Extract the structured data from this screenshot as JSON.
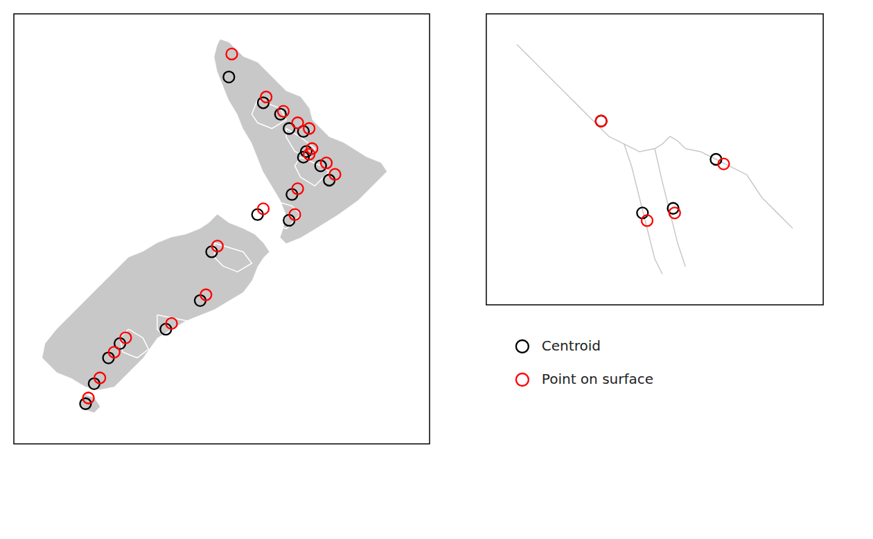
{
  "chart_data": [
    {
      "type": "scatter",
      "xlim": [
        165.5,
        180.0
      ],
      "ylim": [
        -48.5,
        -33.5
      ],
      "tick_labels": false,
      "series": [
        {
          "type": "polygon",
          "color": "#c8c8c8",
          "x": [
            172.7,
            173.0,
            173.5,
            174.0,
            174.3,
            174.8,
            175.0,
            175.5,
            175.8,
            175.9,
            176.2,
            176.5,
            177.0,
            177.8,
            178.3,
            178.5,
            178.0,
            177.5,
            176.8,
            176.0,
            175.5,
            175.0,
            174.8,
            174.9,
            175.0,
            174.8,
            174.5,
            174.2,
            174.0,
            173.8,
            173.5,
            173.3,
            173.0,
            172.8,
            172.6,
            172.5,
            172.6,
            172.7
          ],
          "values": [
            -34.4,
            -34.5,
            -35.0,
            -35.2,
            -35.5,
            -36.0,
            -36.2,
            -36.4,
            -36.8,
            -37.2,
            -37.5,
            -37.8,
            -38.0,
            -38.5,
            -38.7,
            -39.0,
            -39.5,
            -40.0,
            -40.5,
            -41.0,
            -41.3,
            -41.5,
            -41.3,
            -41.0,
            -40.5,
            -40.0,
            -39.5,
            -39.0,
            -38.5,
            -38.0,
            -37.5,
            -37.0,
            -36.5,
            -36.0,
            -35.5,
            -35.0,
            -34.6,
            -34.4
          ]
        },
        {
          "type": "polygon",
          "color": "#c8c8c8",
          "x": [
            172.6,
            173.0,
            173.5,
            173.9,
            174.2,
            174.4,
            174.2,
            174.0,
            173.8,
            173.5,
            173.0,
            172.5,
            172.0,
            171.5,
            171.0,
            170.5,
            170.0,
            169.5,
            169.0,
            168.5,
            168.0,
            167.5,
            167.0,
            166.8,
            166.5,
            166.6,
            167.0,
            167.5,
            168.0,
            168.5,
            169.0,
            169.5,
            170.0,
            170.5,
            171.0,
            171.5,
            172.0,
            172.3,
            172.6
          ],
          "values": [
            -40.5,
            -40.8,
            -41.0,
            -41.2,
            -41.5,
            -41.8,
            -42.0,
            -42.3,
            -42.8,
            -43.2,
            -43.5,
            -43.8,
            -44.0,
            -44.2,
            -44.5,
            -44.8,
            -45.5,
            -46.0,
            -46.5,
            -46.6,
            -46.5,
            -46.2,
            -46.0,
            -45.8,
            -45.5,
            -45.0,
            -44.5,
            -44.0,
            -43.5,
            -43.0,
            -42.5,
            -42.0,
            -41.8,
            -41.5,
            -41.3,
            -41.2,
            -41.0,
            -40.8,
            -40.5
          ]
        },
        {
          "type": "polygon",
          "color": "#c8c8c8",
          "x": [
            168.0,
            168.3,
            168.5,
            168.3,
            168.0,
            167.8,
            168.0
          ],
          "values": [
            -46.8,
            -46.9,
            -47.2,
            -47.4,
            -47.3,
            -47.1,
            -46.8
          ]
        },
        {
          "type": "line",
          "color": "white",
          "x": [
            174.0,
            174.8,
            175.0,
            174.5,
            174.0,
            173.8,
            174.0
          ],
          "values": [
            -36.5,
            -36.8,
            -37.2,
            -37.5,
            -37.3,
            -37.0,
            -36.5
          ]
        },
        {
          "type": "line",
          "color": "white",
          "x": [
            175.0,
            175.5,
            176.0,
            175.8,
            175.3,
            175.0,
            175.0
          ],
          "values": [
            -37.5,
            -37.8,
            -38.2,
            -38.5,
            -38.3,
            -37.8,
            -37.5
          ]
        },
        {
          "type": "line",
          "color": "white",
          "x": [
            175.5,
            176.2,
            176.5,
            176.0,
            175.5,
            175.3,
            175.5
          ],
          "values": [
            -38.5,
            -38.8,
            -39.0,
            -39.5,
            -39.2,
            -38.8,
            -38.5
          ]
        },
        {
          "type": "line",
          "color": "white",
          "x": [
            174.5,
            175.2,
            175.5,
            175.0,
            174.5,
            174.3,
            174.5
          ],
          "values": [
            -40.0,
            -40.2,
            -40.5,
            -41.0,
            -40.8,
            -40.5,
            -40.0
          ]
        },
        {
          "type": "line",
          "color": "white",
          "x": [
            172.5,
            173.5,
            173.8,
            173.3,
            172.8,
            172.5,
            172.5
          ],
          "values": [
            -41.5,
            -41.8,
            -42.2,
            -42.5,
            -42.3,
            -42.0,
            -41.5
          ]
        },
        {
          "type": "line",
          "color": "white",
          "x": [
            170.5,
            171.5,
            172.0,
            171.5,
            170.8,
            170.5,
            170.5
          ],
          "values": [
            -44.0,
            -44.2,
            -44.5,
            -45.0,
            -44.8,
            -44.5,
            -44.0
          ]
        },
        {
          "type": "line",
          "color": "white",
          "x": [
            169.5,
            170.0,
            170.2,
            169.8,
            169.3,
            169.2,
            169.5
          ],
          "values": [
            -44.5,
            -44.8,
            -45.2,
            -45.5,
            -45.3,
            -44.8,
            -44.5
          ]
        },
        {
          "type": "scatter",
          "color": "black",
          "marker": "circle",
          "x": [
            173.0,
            174.2,
            174.8,
            175.6,
            175.1,
            175.7,
            176.2,
            176.5,
            175.6,
            175.2,
            175.1,
            174.0,
            172.4,
            172.0,
            170.8,
            169.2,
            168.8,
            168.3,
            168.0
          ],
          "values": [
            -35.7,
            -36.6,
            -37.0,
            -37.6,
            -37.5,
            -38.3,
            -38.8,
            -39.3,
            -38.5,
            -39.8,
            -40.7,
            -40.5,
            -41.8,
            -43.5,
            -44.5,
            -45.0,
            -45.5,
            -46.4,
            -47.1
          ]
        },
        {
          "type": "scatter",
          "color": "red",
          "marker": "circle",
          "x": [
            173.1,
            174.3,
            174.9,
            175.8,
            175.4,
            175.9,
            176.4,
            176.7,
            175.8,
            175.4,
            175.3,
            174.2,
            172.6,
            172.2,
            171.0,
            169.4,
            169.0,
            168.5,
            168.1
          ],
          "values": [
            -34.9,
            -36.4,
            -36.9,
            -37.5,
            -37.3,
            -38.2,
            -38.7,
            -39.1,
            -38.4,
            -39.6,
            -40.5,
            -40.3,
            -41.6,
            -43.3,
            -44.3,
            -44.8,
            -45.3,
            -46.2,
            -46.9
          ]
        }
      ]
    },
    {
      "type": "scatter",
      "xlim": [
        1.2,
        3.4
      ],
      "ylim": [
        47.8,
        49.7
      ],
      "tick_labels": false,
      "legend": "bottom",
      "series": [
        {
          "type": "line",
          "color": "#c8c8c8",
          "x": [
            1.4,
            1.5,
            1.6,
            1.7,
            1.8,
            1.9,
            2.0,
            2.1,
            2.2,
            2.3,
            2.35,
            2.4,
            2.45,
            2.5
          ],
          "values": [
            49.5,
            49.4,
            49.3,
            49.2,
            49.1,
            49.0,
            48.9,
            48.85,
            48.8,
            48.82,
            48.85,
            48.9,
            48.87,
            48.82
          ]
        },
        {
          "type": "line",
          "color": "#c8c8c8",
          "x": [
            2.5,
            2.6,
            2.7,
            2.8,
            2.9,
            3.0,
            3.1,
            3.2
          ],
          "values": [
            48.82,
            48.8,
            48.75,
            48.7,
            48.65,
            48.5,
            48.4,
            48.3
          ]
        },
        {
          "type": "line",
          "color": "#c8c8c8",
          "x": [
            2.1,
            2.15,
            2.2,
            2.25,
            2.3,
            2.35
          ],
          "values": [
            48.85,
            48.7,
            48.5,
            48.3,
            48.1,
            48.0
          ]
        },
        {
          "type": "line",
          "color": "#c8c8c8",
          "x": [
            2.3,
            2.35,
            2.4,
            2.45,
            2.5
          ],
          "values": [
            48.82,
            48.6,
            48.4,
            48.2,
            48.05
          ]
        },
        {
          "type": "scatter",
          "name": "Centroid",
          "color": "black",
          "marker": "circle",
          "x": [
            1.95,
            2.7,
            2.22,
            2.42
          ],
          "values": [
            49.0,
            48.75,
            48.4,
            48.43
          ]
        },
        {
          "type": "scatter",
          "name": "Point on surface",
          "color": "red",
          "marker": "circle",
          "x": [
            1.95,
            2.75,
            2.25,
            2.43
          ],
          "values": [
            49.0,
            48.72,
            48.35,
            48.4
          ]
        }
      ]
    }
  ]
}
